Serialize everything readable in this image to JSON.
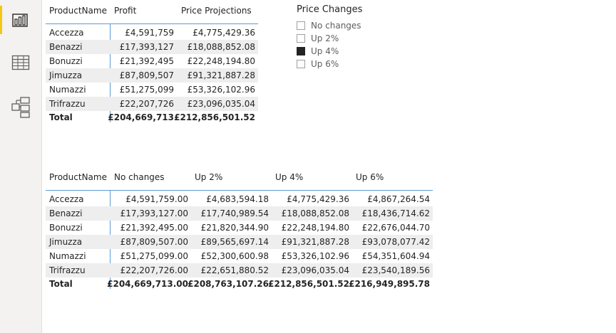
{
  "nav": {
    "items": [
      {
        "name": "report-view",
        "icon": "bar-chart-icon",
        "active": true
      },
      {
        "name": "data-view",
        "icon": "table-grid-icon",
        "active": false
      },
      {
        "name": "model-view",
        "icon": "model-diagram-icon",
        "active": false
      }
    ],
    "accent_color": "#f2c811"
  },
  "table1": {
    "headers": [
      "ProductName",
      "Profit",
      "Price Projections"
    ],
    "rows": [
      {
        "name": "Accezza",
        "profit": "£4,591,759",
        "projection": "£4,775,429.36"
      },
      {
        "name": "Benazzi",
        "profit": "£17,393,127",
        "projection": "£18,088,852.08"
      },
      {
        "name": "Bonuzzi",
        "profit": "£21,392,495",
        "projection": "£22,248,194.80"
      },
      {
        "name": "Jimuzza",
        "profit": "£87,809,507",
        "projection": "£91,321,887.28"
      },
      {
        "name": "Numazzi",
        "profit": "£51,275,099",
        "projection": "£53,326,102.96"
      },
      {
        "name": "Trifrazzu",
        "profit": "£22,207,726",
        "projection": "£23,096,035.04"
      }
    ],
    "total": {
      "name": "Total",
      "profit": "£204,669,713",
      "projection": "£212,856,501.52"
    }
  },
  "slicer": {
    "title": "Price Changes",
    "options": [
      {
        "label": "No changes",
        "checked": false
      },
      {
        "label": "Up 2%",
        "checked": false
      },
      {
        "label": "Up 4%",
        "checked": true
      },
      {
        "label": "Up 6%",
        "checked": false
      }
    ]
  },
  "table2": {
    "headers": [
      "ProductName",
      "No changes",
      "Up 2%",
      "Up 4%",
      "Up 6%"
    ],
    "rows": [
      {
        "name": "Accezza",
        "v": [
          "£4,591,759.00",
          "£4,683,594.18",
          "£4,775,429.36",
          "£4,867,264.54"
        ]
      },
      {
        "name": "Benazzi",
        "v": [
          "£17,393,127.00",
          "£17,740,989.54",
          "£18,088,852.08",
          "£18,436,714.62"
        ]
      },
      {
        "name": "Bonuzzi",
        "v": [
          "£21,392,495.00",
          "£21,820,344.90",
          "£22,248,194.80",
          "£22,676,044.70"
        ]
      },
      {
        "name": "Jimuzza",
        "v": [
          "£87,809,507.00",
          "£89,565,697.14",
          "£91,321,887.28",
          "£93,078,077.42"
        ]
      },
      {
        "name": "Numazzi",
        "v": [
          "£51,275,099.00",
          "£52,300,600.98",
          "£53,326,102.96",
          "£54,351,604.94"
        ]
      },
      {
        "name": "Trifrazzu",
        "v": [
          "£22,207,726.00",
          "£22,651,880.52",
          "£23,096,035.04",
          "£23,540,189.56"
        ]
      }
    ],
    "total": {
      "name": "Total",
      "v": [
        "£204,669,713.00",
        "£208,763,107.26",
        "£212,856,501.52",
        "£216,949,895.78"
      ]
    }
  }
}
